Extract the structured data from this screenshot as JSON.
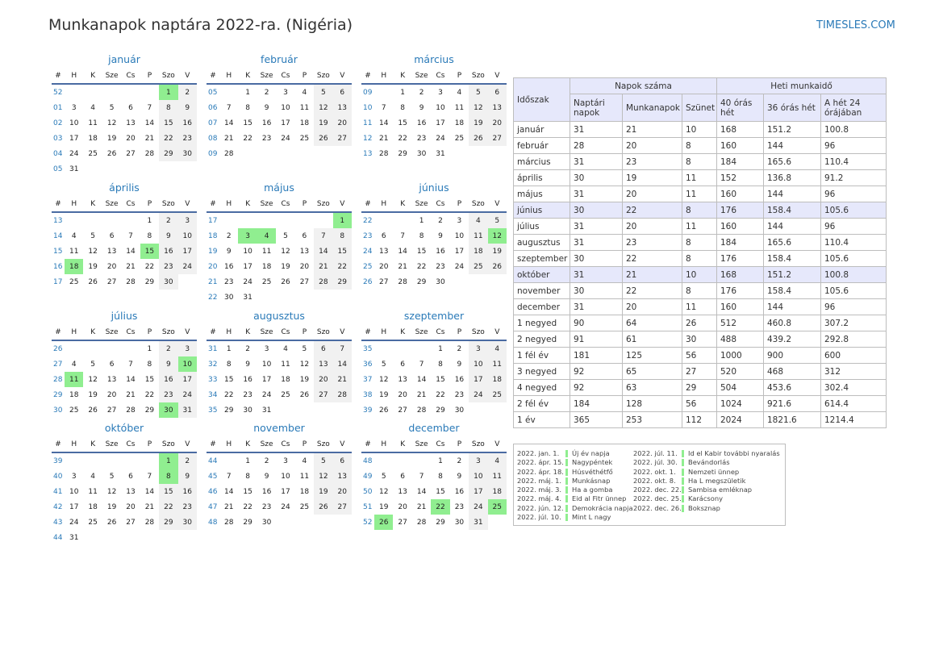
{
  "title": "Munkanapok naptára 2022-ra. (Nigéria)",
  "brand": "TIMESLES.COM",
  "colors": {
    "accent": "#2a7ab8",
    "holiday": "#90ee90",
    "weekend": "#f1f1f1",
    "header_bg": "#e6e8fb",
    "rule": "#4a6ba2"
  },
  "calendar_header": [
    "#",
    "H",
    "K",
    "Sze",
    "Cs",
    "P",
    "Szo",
    "V"
  ],
  "months": [
    {
      "name": "január",
      "rows": [
        [
          "52",
          "",
          "",
          "",
          "",
          "",
          "1",
          "2"
        ],
        [
          "01",
          "3",
          "4",
          "5",
          "6",
          "7",
          "8",
          "9"
        ],
        [
          "02",
          "10",
          "11",
          "12",
          "13",
          "14",
          "15",
          "16"
        ],
        [
          "03",
          "17",
          "18",
          "19",
          "20",
          "21",
          "22",
          "23"
        ],
        [
          "04",
          "24",
          "25",
          "26",
          "27",
          "28",
          "29",
          "30"
        ],
        [
          "05",
          "31",
          "",
          "",
          "",
          "",
          "",
          ""
        ]
      ],
      "holidays": [
        "1"
      ]
    },
    {
      "name": "február",
      "rows": [
        [
          "05",
          "",
          "1",
          "2",
          "3",
          "4",
          "5",
          "6"
        ],
        [
          "06",
          "7",
          "8",
          "9",
          "10",
          "11",
          "12",
          "13"
        ],
        [
          "07",
          "14",
          "15",
          "16",
          "17",
          "18",
          "19",
          "20"
        ],
        [
          "08",
          "21",
          "22",
          "23",
          "24",
          "25",
          "26",
          "27"
        ],
        [
          "09",
          "28",
          "",
          "",
          "",
          "",
          "",
          ""
        ]
      ],
      "holidays": []
    },
    {
      "name": "március",
      "rows": [
        [
          "09",
          "",
          "1",
          "2",
          "3",
          "4",
          "5",
          "6"
        ],
        [
          "10",
          "7",
          "8",
          "9",
          "10",
          "11",
          "12",
          "13"
        ],
        [
          "11",
          "14",
          "15",
          "16",
          "17",
          "18",
          "19",
          "20"
        ],
        [
          "12",
          "21",
          "22",
          "23",
          "24",
          "25",
          "26",
          "27"
        ],
        [
          "13",
          "28",
          "29",
          "30",
          "31",
          "",
          "",
          ""
        ]
      ],
      "holidays": []
    },
    {
      "name": "április",
      "rows": [
        [
          "13",
          "",
          "",
          "",
          "",
          "1",
          "2",
          "3"
        ],
        [
          "14",
          "4",
          "5",
          "6",
          "7",
          "8",
          "9",
          "10"
        ],
        [
          "15",
          "11",
          "12",
          "13",
          "14",
          "15",
          "16",
          "17"
        ],
        [
          "16",
          "18",
          "19",
          "20",
          "21",
          "22",
          "23",
          "24"
        ],
        [
          "17",
          "25",
          "26",
          "27",
          "28",
          "29",
          "30",
          ""
        ]
      ],
      "holidays": [
        "15",
        "18"
      ]
    },
    {
      "name": "május",
      "rows": [
        [
          "17",
          "",
          "",
          "",
          "",
          "",
          "",
          "1"
        ],
        [
          "18",
          "2",
          "3",
          "4",
          "5",
          "6",
          "7",
          "8"
        ],
        [
          "19",
          "9",
          "10",
          "11",
          "12",
          "13",
          "14",
          "15"
        ],
        [
          "20",
          "16",
          "17",
          "18",
          "19",
          "20",
          "21",
          "22"
        ],
        [
          "21",
          "23",
          "24",
          "25",
          "26",
          "27",
          "28",
          "29"
        ],
        [
          "22",
          "30",
          "31",
          "",
          "",
          "",
          "",
          ""
        ]
      ],
      "holidays": [
        "1",
        "3",
        "4"
      ]
    },
    {
      "name": "június",
      "rows": [
        [
          "22",
          "",
          "",
          "1",
          "2",
          "3",
          "4",
          "5"
        ],
        [
          "23",
          "6",
          "7",
          "8",
          "9",
          "10",
          "11",
          "12"
        ],
        [
          "24",
          "13",
          "14",
          "15",
          "16",
          "17",
          "18",
          "19"
        ],
        [
          "25",
          "20",
          "21",
          "22",
          "23",
          "24",
          "25",
          "26"
        ],
        [
          "26",
          "27",
          "28",
          "29",
          "30",
          "",
          "",
          ""
        ]
      ],
      "holidays": [
        "12"
      ]
    },
    {
      "name": "július",
      "rows": [
        [
          "26",
          "",
          "",
          "",
          "",
          "1",
          "2",
          "3"
        ],
        [
          "27",
          "4",
          "5",
          "6",
          "7",
          "8",
          "9",
          "10"
        ],
        [
          "28",
          "11",
          "12",
          "13",
          "14",
          "15",
          "16",
          "17"
        ],
        [
          "29",
          "18",
          "19",
          "20",
          "21",
          "22",
          "23",
          "24"
        ],
        [
          "30",
          "25",
          "26",
          "27",
          "28",
          "29",
          "30",
          "31"
        ]
      ],
      "holidays": [
        "10",
        "11",
        "30"
      ]
    },
    {
      "name": "augusztus",
      "rows": [
        [
          "31",
          "1",
          "2",
          "3",
          "4",
          "5",
          "6",
          "7"
        ],
        [
          "32",
          "8",
          "9",
          "10",
          "11",
          "12",
          "13",
          "14"
        ],
        [
          "33",
          "15",
          "16",
          "17",
          "18",
          "19",
          "20",
          "21"
        ],
        [
          "34",
          "22",
          "23",
          "24",
          "25",
          "26",
          "27",
          "28"
        ],
        [
          "35",
          "29",
          "30",
          "31",
          "",
          "",
          "",
          ""
        ]
      ],
      "holidays": []
    },
    {
      "name": "szeptember",
      "rows": [
        [
          "35",
          "",
          "",
          "",
          "1",
          "2",
          "3",
          "4"
        ],
        [
          "36",
          "5",
          "6",
          "7",
          "8",
          "9",
          "10",
          "11"
        ],
        [
          "37",
          "12",
          "13",
          "14",
          "15",
          "16",
          "17",
          "18"
        ],
        [
          "38",
          "19",
          "20",
          "21",
          "22",
          "23",
          "24",
          "25"
        ],
        [
          "39",
          "26",
          "27",
          "28",
          "29",
          "30",
          "",
          ""
        ]
      ],
      "holidays": []
    },
    {
      "name": "október",
      "rows": [
        [
          "39",
          "",
          "",
          "",
          "",
          "",
          "1",
          "2"
        ],
        [
          "40",
          "3",
          "4",
          "5",
          "6",
          "7",
          "8",
          "9"
        ],
        [
          "41",
          "10",
          "11",
          "12",
          "13",
          "14",
          "15",
          "16"
        ],
        [
          "42",
          "17",
          "18",
          "19",
          "20",
          "21",
          "22",
          "23"
        ],
        [
          "43",
          "24",
          "25",
          "26",
          "27",
          "28",
          "29",
          "30"
        ],
        [
          "44",
          "31",
          "",
          "",
          "",
          "",
          "",
          ""
        ]
      ],
      "holidays": [
        "1",
        "8"
      ]
    },
    {
      "name": "november",
      "rows": [
        [
          "44",
          "",
          "1",
          "2",
          "3",
          "4",
          "5",
          "6"
        ],
        [
          "45",
          "7",
          "8",
          "9",
          "10",
          "11",
          "12",
          "13"
        ],
        [
          "46",
          "14",
          "15",
          "16",
          "17",
          "18",
          "19",
          "20"
        ],
        [
          "47",
          "21",
          "22",
          "23",
          "24",
          "25",
          "26",
          "27"
        ],
        [
          "48",
          "28",
          "29",
          "30",
          "",
          "",
          "",
          ""
        ]
      ],
      "holidays": []
    },
    {
      "name": "december",
      "rows": [
        [
          "48",
          "",
          "",
          "",
          "1",
          "2",
          "3",
          "4"
        ],
        [
          "49",
          "5",
          "6",
          "7",
          "8",
          "9",
          "10",
          "11"
        ],
        [
          "50",
          "12",
          "13",
          "14",
          "15",
          "16",
          "17",
          "18"
        ],
        [
          "51",
          "19",
          "20",
          "21",
          "22",
          "23",
          "24",
          "25"
        ],
        [
          "52",
          "26",
          "27",
          "28",
          "29",
          "30",
          "31",
          ""
        ]
      ],
      "holidays": [
        "22",
        "25",
        "26"
      ]
    }
  ],
  "summary": {
    "h_period": "Időszak",
    "h_days": "Napok száma",
    "h_hours": "Heti munkaidő",
    "h_calendar": "Naptári napok",
    "h_workdays": "Munkanapok",
    "h_holidays": "Szünet",
    "h_40": "40 órás hét",
    "h_36": "36 órás hét",
    "h_24": "A hét 24 órájában",
    "rows": [
      [
        "január",
        "31",
        "21",
        "10",
        "168",
        "151.2",
        "100.8"
      ],
      [
        "február",
        "28",
        "20",
        "8",
        "160",
        "144",
        "96"
      ],
      [
        "március",
        "31",
        "23",
        "8",
        "184",
        "165.6",
        "110.4"
      ],
      [
        "április",
        "30",
        "19",
        "11",
        "152",
        "136.8",
        "91.2"
      ],
      [
        "május",
        "31",
        "20",
        "11",
        "160",
        "144",
        "96"
      ],
      [
        "június",
        "30",
        "22",
        "8",
        "176",
        "158.4",
        "105.6"
      ],
      [
        "július",
        "31",
        "20",
        "11",
        "160",
        "144",
        "96"
      ],
      [
        "augusztus",
        "31",
        "23",
        "8",
        "184",
        "165.6",
        "110.4"
      ],
      [
        "szeptember",
        "30",
        "22",
        "8",
        "176",
        "158.4",
        "105.6"
      ],
      [
        "október",
        "31",
        "21",
        "10",
        "168",
        "151.2",
        "100.8"
      ],
      [
        "november",
        "30",
        "22",
        "8",
        "176",
        "158.4",
        "105.6"
      ],
      [
        "december",
        "31",
        "20",
        "11",
        "160",
        "144",
        "96"
      ],
      [
        "1 negyed",
        "90",
        "64",
        "26",
        "512",
        "460.8",
        "307.2"
      ],
      [
        "2 negyed",
        "91",
        "61",
        "30",
        "488",
        "439.2",
        "292.8"
      ],
      [
        "1 fél év",
        "181",
        "125",
        "56",
        "1000",
        "900",
        "600"
      ],
      [
        "3 negyed",
        "92",
        "65",
        "27",
        "520",
        "468",
        "312"
      ],
      [
        "4 negyed",
        "92",
        "63",
        "29",
        "504",
        "453.6",
        "302.4"
      ],
      [
        "2 fél év",
        "184",
        "128",
        "56",
        "1024",
        "921.6",
        "614.4"
      ],
      [
        "1 év",
        "365",
        "253",
        "112",
        "2024",
        "1821.6",
        "1214.4"
      ]
    ]
  },
  "holiday_list": [
    [
      {
        "date": "2022. jan. 1.",
        "name": "Új év napja"
      },
      {
        "date": "2022. ápr. 15.",
        "name": "Nagypéntek"
      },
      {
        "date": "2022. ápr. 18.",
        "name": "Húsvéthétfő"
      },
      {
        "date": "2022. máj. 1.",
        "name": "Munkásnap"
      },
      {
        "date": "2022. máj. 3.",
        "name": "Ha a gomba"
      },
      {
        "date": "2022. máj. 4.",
        "name": "Eid al Fitr ünnep"
      },
      {
        "date": "2022. jún. 12.",
        "name": "Demokrácia napja"
      },
      {
        "date": "2022. júl. 10.",
        "name": "Mint L nagy"
      }
    ],
    [
      {
        "date": "2022. júl. 11.",
        "name": "Id el Kabir további nyaralás"
      },
      {
        "date": "2022. júl. 30.",
        "name": "Bevándorlás"
      },
      {
        "date": "2022. okt. 1.",
        "name": "Nemzeti ünnep"
      },
      {
        "date": "2022. okt. 8.",
        "name": "Ha L megszületik"
      },
      {
        "date": "2022. dec. 22.",
        "name": "Sambisa emléknap"
      },
      {
        "date": "2022. dec. 25.",
        "name": "Karácsony"
      },
      {
        "date": "2022. dec. 26.",
        "name": "Boksznap"
      }
    ]
  ]
}
